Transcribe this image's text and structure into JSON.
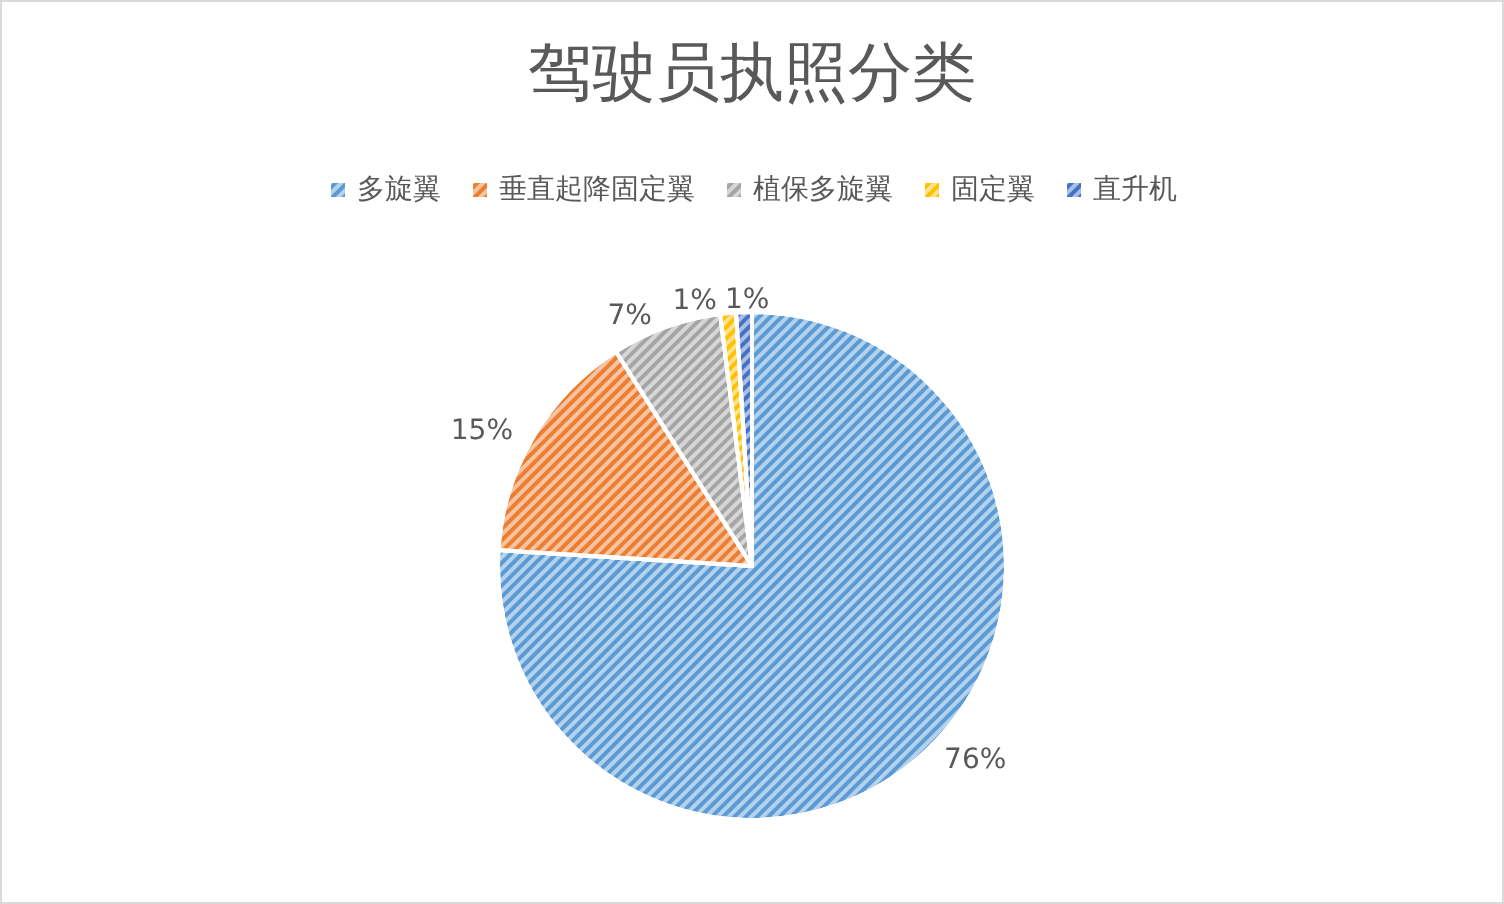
{
  "chart_data": {
    "type": "pie",
    "title": "驾驶员执照分类",
    "categories": [
      "多旋翼",
      "垂直起降固定翼",
      "植保多旋翼",
      "固定翼",
      "直升机"
    ],
    "values": [
      76,
      15,
      7,
      1,
      1
    ],
    "colors": [
      "#5b9bd5",
      "#ed7d31",
      "#a5a5a5",
      "#ffc000",
      "#4472c4"
    ],
    "value_labels": [
      "76%",
      "15%",
      "7%",
      "1%",
      "1%"
    ],
    "legend": "top"
  }
}
